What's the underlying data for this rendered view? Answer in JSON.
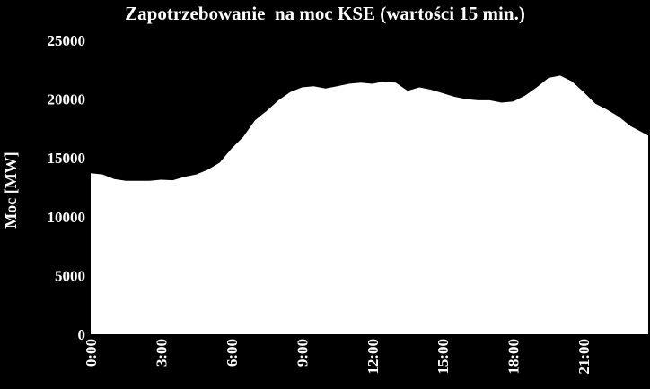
{
  "chart_data": {
    "type": "area",
    "title": "Zapotrzebowanie  na moc KSE (wartości 15 min.)",
    "xlabel": "",
    "ylabel": "Moc [MW]",
    "ylim": [
      0,
      25000
    ],
    "xlim": [
      0,
      23.75
    ],
    "grid": false,
    "legend": "none",
    "yticks": [
      "0",
      "5000",
      "10000",
      "15000",
      "20000",
      "25000"
    ],
    "xticks": [
      "0:00",
      "3:00",
      "6:00",
      "9:00",
      "12:00",
      "15:00",
      "18:00",
      "21:00"
    ],
    "xtick_hours": [
      0,
      3,
      6,
      9,
      12,
      15,
      18,
      21
    ],
    "colors": {
      "background": "#000000",
      "area": "#ffffff",
      "text": "#ffffff"
    },
    "series": [
      {
        "x": [
          0,
          0.5,
          1,
          1.5,
          2,
          2.5,
          3,
          3.5,
          4,
          4.5,
          5,
          5.5,
          6,
          6.5,
          7,
          7.5,
          8,
          8.5,
          9,
          9.5,
          10,
          10.5,
          11,
          11.5,
          12,
          12.5,
          13,
          13.5,
          14,
          14.5,
          15,
          15.5,
          16,
          16.5,
          17,
          17.5,
          18,
          18.5,
          19,
          19.5,
          20,
          20.5,
          21,
          21.5,
          22,
          22.5,
          23,
          23.75
        ],
        "values": [
          13700,
          13600,
          13200,
          13050,
          13050,
          13050,
          13150,
          13100,
          13400,
          13600,
          14000,
          14600,
          15800,
          16800,
          18200,
          19000,
          19900,
          20600,
          21000,
          21100,
          20900,
          21100,
          21300,
          21400,
          21300,
          21500,
          21400,
          20700,
          21000,
          20800,
          20500,
          20200,
          20000,
          19900,
          19900,
          19700,
          19800,
          20300,
          21000,
          21800,
          22000,
          21500,
          20600,
          19600,
          19100,
          18500,
          17700,
          16900
        ]
      }
    ]
  }
}
